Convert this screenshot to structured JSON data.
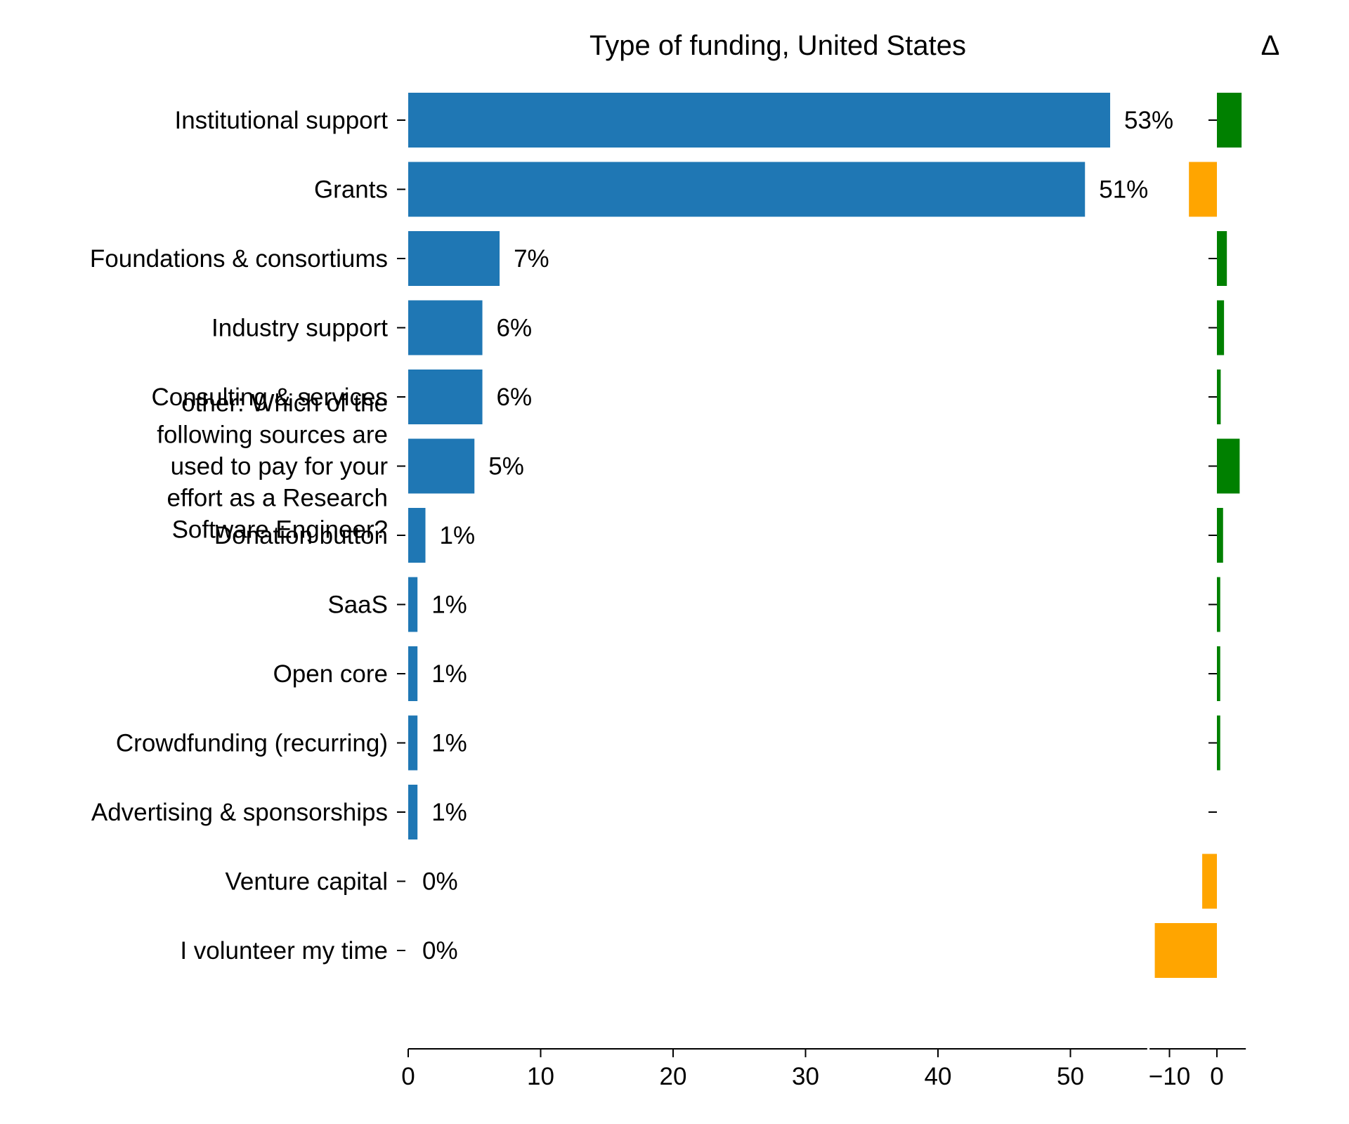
{
  "chart_data": [
    {
      "type": "bar",
      "orientation": "horizontal",
      "title": "Type of funding, United States",
      "categories": [
        "Institutional support",
        "Grants",
        "Foundations & consortiums",
        "Industry support",
        "Consulting & services",
        "other: Which of the following sources are used to pay for your effort as a Research Software Engineer?",
        "Donation button",
        "SaaS",
        "Open core",
        "Crowdfunding (recurring)",
        "Advertising & sponsorships",
        "Venture capital",
        "I volunteer my time"
      ],
      "values": [
        53.0,
        51.1,
        6.9,
        5.6,
        5.6,
        5.0,
        1.3,
        0.7,
        0.7,
        0.7,
        0.7,
        0,
        0
      ],
      "value_labels": [
        "53%",
        "51%",
        "7%",
        "6%",
        "6%",
        "5%",
        "1%",
        "1%",
        "1%",
        "1%",
        "1%",
        "0%",
        "0%"
      ],
      "xlim": [
        0,
        55.8
      ],
      "xticks": [
        0,
        10,
        20,
        30,
        40,
        50
      ],
      "xtick_labels": [
        "0",
        "10",
        "20",
        "30",
        "40",
        "50"
      ],
      "bar_color": "#1f77b4",
      "grid": false
    },
    {
      "type": "bar",
      "orientation": "horizontal",
      "title": "Δ",
      "categories": [
        "Institutional support",
        "Grants",
        "Foundations & consortiums",
        "Industry support",
        "Consulting & services",
        "other: Which of the following sources are used to pay for your effort as a Research Software Engineer?",
        "Donation button",
        "SaaS",
        "Open core",
        "Crowdfunding (recurring)",
        "Advertising & sponsorships",
        "Venture capital",
        "I volunteer my time"
      ],
      "values": [
        5.2,
        -5.9,
        2.1,
        1.5,
        0.8,
        4.8,
        1.3,
        0.7,
        0.7,
        0.7,
        0,
        -3.1,
        -13.1
      ],
      "xlim": [
        -14.2,
        6.1
      ],
      "xticks": [
        -10,
        0
      ],
      "xtick_labels": [
        "−10",
        "0"
      ],
      "positive_color": "#008000",
      "negative_color": "#ffa500",
      "grid": false
    }
  ]
}
